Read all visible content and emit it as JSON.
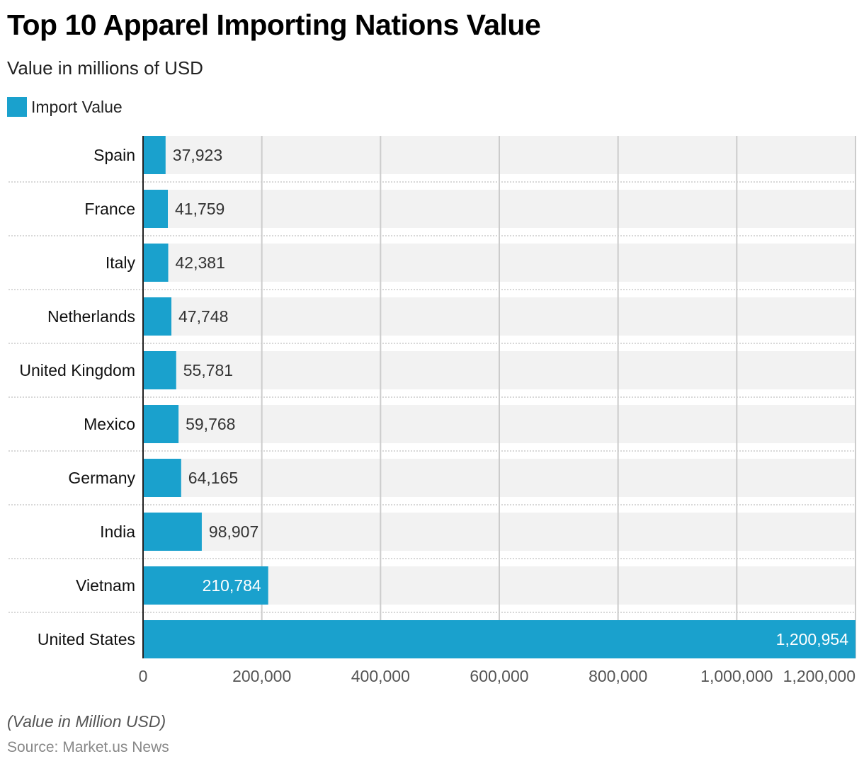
{
  "header": {
    "title": "Top 10 Apparel Importing Nations Value",
    "subtitle": "Value in millions of USD"
  },
  "legend": {
    "label": "Import Value"
  },
  "colors": {
    "bar": "#1aa1cd",
    "row_background": "#f2f2f2",
    "gridline": "#cccccc",
    "separator": "#cccccc",
    "axis": "#222222",
    "label_outside": "#333333",
    "label_inside": "#ffffff"
  },
  "footer": {
    "note": "(Value in Million USD)",
    "source": "Source: Market.us News"
  },
  "chart_data": {
    "type": "bar",
    "orientation": "horizontal",
    "title": "Top 10 Apparel Importing Nations Value",
    "subtitle": "Value in millions of USD",
    "xlabel": "",
    "ylabel": "",
    "xlim": [
      0,
      1200000
    ],
    "x_ticks": [
      0,
      200000,
      400000,
      600000,
      800000,
      1000000,
      1200000
    ],
    "x_tick_labels": [
      "0",
      "200,000",
      "400,000",
      "600,000",
      "800,000",
      "1,000,000",
      "1,200,000"
    ],
    "grid": true,
    "legend_position": "top-left",
    "categories": [
      "Spain",
      "France",
      "Italy",
      "Netherlands",
      "United Kingdom",
      "Mexico",
      "Germany",
      "India",
      "Vietnam",
      "United States"
    ],
    "series": [
      {
        "name": "Import Value",
        "values": [
          37923,
          41759,
          42381,
          47748,
          55781,
          59768,
          64165,
          98907,
          210784,
          1200954
        ],
        "labels": [
          "37,923",
          "41,759",
          "42,381",
          "47,748",
          "55,781",
          "59,768",
          "64,165",
          "98,907",
          "210,784",
          "1,200,954"
        ]
      }
    ]
  }
}
